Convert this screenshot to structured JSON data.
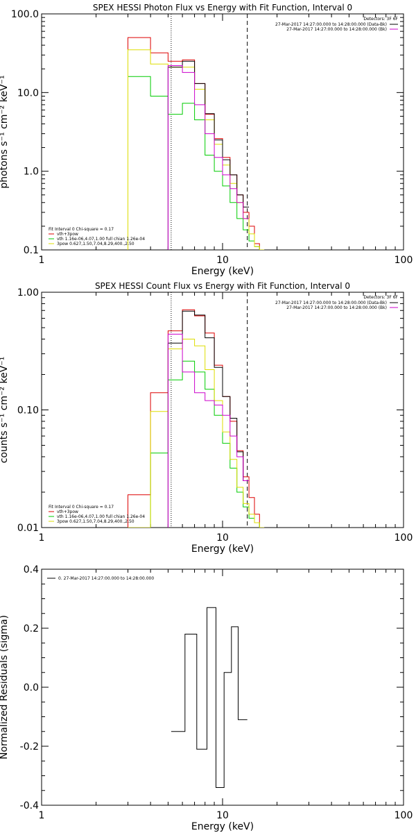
{
  "chart_data": [
    {
      "type": "line",
      "title": "SPEX HESSI Photon Flux vs Energy with Fit Function, Interval 0",
      "xlabel": "Energy (keV)",
      "ylabel": "photons s⁻¹ cm⁻² keV⁻¹",
      "x_scale": "log",
      "y_scale": "log",
      "xlim": [
        1,
        100
      ],
      "ylim": [
        0.1,
        100
      ],
      "x_ticks": [
        1,
        10,
        100
      ],
      "x_tick_labels": [
        "1",
        "10",
        "100"
      ],
      "y_ticks": [
        0.1,
        1,
        10,
        100
      ],
      "y_tick_labels": [
        "0.1",
        "1.0",
        "10.0",
        "100.0"
      ],
      "vlines": [
        {
          "x": 5.2,
          "style": "dotted",
          "color": "#000000"
        },
        {
          "x": 13.7,
          "style": "dashed",
          "color": "#000000"
        }
      ],
      "legend_top": {
        "header": "Detectors: 3F 6F",
        "entries": [
          {
            "text": "27-Mar-2017 14:27:00.000 to 14:28:00.000 (Data-Bk)",
            "color": "#000000"
          },
          {
            "text": "27-Mar-2017 14:27:00.000 to 14:28:00.000 (Bk)",
            "color": "#cc00cc"
          }
        ]
      },
      "legend_bottom": {
        "header": "Fit Interval 0   Chi-square = 0.17",
        "entries": [
          {
            "text": "vth+3pow",
            "color": "#dd0000"
          },
          {
            "text": "vth 1.16e-06,4.07,1.00  full chian 1.26e-04",
            "color": "#00cc00"
          },
          {
            "text": "3pow 0.627,1.50,7.04,8.29,400.,2.50",
            "color": "#dddd00"
          }
        ]
      },
      "edges": [
        3.0,
        4.0,
        5.0,
        6.0,
        7.0,
        8.0,
        9.0,
        10.0,
        11.0,
        12.0,
        13.0,
        14.0,
        15.0,
        16.0,
        17.0
      ],
      "series": [
        {
          "color": "#dd0000",
          "values": [
            50,
            32,
            25,
            26,
            13,
            5.3,
            2.6,
            1.5,
            0.9,
            0.5,
            0.3,
            0.2,
            0.12,
            0.1
          ]
        },
        {
          "color": "#00cc00",
          "values": [
            16,
            9,
            5.3,
            7.3,
            4.5,
            1.6,
            1.0,
            0.65,
            0.4,
            0.25,
            0.18,
            0.13,
            0.11,
            0.1
          ]
        },
        {
          "color": "#dddd00",
          "values": [
            35,
            23,
            21,
            21,
            11,
            4.5,
            2.2,
            1.2,
            0.7,
            0.4,
            0.25,
            0.16,
            0.11,
            0.1
          ]
        },
        {
          "color": "#000000",
          "values": [
            null,
            null,
            21,
            25,
            13,
            5.4,
            2.5,
            1.4,
            0.9,
            0.5,
            0.35,
            null,
            null,
            null
          ]
        },
        {
          "color": "#cc00cc",
          "values": [
            null,
            null,
            22,
            18,
            7,
            3.0,
            1.5,
            0.9,
            0.6,
            0.4,
            0.25,
            null,
            null,
            null
          ]
        }
      ]
    },
    {
      "type": "line",
      "title": "SPEX HESSI Count Flux vs Energy with Fit Function, Interval 0",
      "xlabel": "Energy (keV)",
      "ylabel": "counts s⁻¹ cm⁻² keV⁻¹",
      "x_scale": "log",
      "y_scale": "log",
      "xlim": [
        1,
        100
      ],
      "ylim": [
        0.01,
        1
      ],
      "x_ticks": [
        1,
        10,
        100
      ],
      "x_tick_labels": [
        "1",
        "10",
        "100"
      ],
      "y_ticks": [
        0.01,
        0.1,
        1
      ],
      "y_tick_labels": [
        "0.01",
        "0.10",
        "1.00"
      ],
      "vlines": [
        {
          "x": 5.2,
          "style": "dotted",
          "color": "#000000"
        },
        {
          "x": 13.7,
          "style": "dashed",
          "color": "#000000"
        }
      ],
      "legend_top": {
        "header": "Detectors: 3F 6F",
        "entries": [
          {
            "text": "27-Mar-2017 14:27:00.000 to 14:28:00.000 (Data-Bk)",
            "color": "#000000"
          },
          {
            "text": "27-Mar-2017 14:27:00.000 to 14:28:00.000 (Bk)",
            "color": "#cc00cc"
          }
        ]
      },
      "legend_bottom": {
        "header": "Fit Interval 0   Chi-square = 0.17",
        "entries": [
          {
            "text": "vth+3pow",
            "color": "#dd0000"
          },
          {
            "text": "vth 1.16e-06,4.07,1.00  full chian 1.26e-04",
            "color": "#00cc00"
          },
          {
            "text": "3pow 0.627,1.50,7.04,8.29,400.,2.50",
            "color": "#dddd00"
          }
        ]
      },
      "edges": [
        3.0,
        4.0,
        5.0,
        6.0,
        7.0,
        8.0,
        9.0,
        10.0,
        11.0,
        12.0,
        13.0,
        14.0,
        15.0,
        16.0,
        17.0
      ],
      "series": [
        {
          "color": "#dd0000",
          "values": [
            0.019,
            0.14,
            0.47,
            0.71,
            0.63,
            0.45,
            0.24,
            0.13,
            0.08,
            0.045,
            0.027,
            0.018,
            0.013,
            0.01
          ]
        },
        {
          "color": "#00cc00",
          "values": [
            0.01,
            0.043,
            0.18,
            0.26,
            0.21,
            0.15,
            0.09,
            0.052,
            0.032,
            0.02,
            0.015,
            0.012,
            0.011,
            0.01
          ]
        },
        {
          "color": "#dddd00",
          "values": [
            0.01,
            0.097,
            0.33,
            0.4,
            0.35,
            0.22,
            0.12,
            0.065,
            0.038,
            0.022,
            0.016,
            0.013,
            0.011,
            0.01
          ]
        },
        {
          "color": "#000000",
          "values": [
            null,
            null,
            0.37,
            0.69,
            0.64,
            0.41,
            0.23,
            0.13,
            0.085,
            0.044,
            0.025,
            null,
            null,
            null
          ]
        },
        {
          "color": "#cc00cc",
          "values": [
            null,
            null,
            0.44,
            0.21,
            0.14,
            0.12,
            0.11,
            0.09,
            0.06,
            0.04,
            0.025,
            null,
            null,
            null
          ]
        }
      ]
    },
    {
      "type": "line",
      "title": "",
      "xlabel": "Energy (keV)",
      "ylabel": "Normalized Residuals (sigma)",
      "x_scale": "log",
      "y_scale": "linear",
      "xlim": [
        1,
        100
      ],
      "ylim": [
        -0.4,
        0.4
      ],
      "x_ticks": [
        1,
        10,
        100
      ],
      "x_tick_labels": [
        "1",
        "10",
        "100"
      ],
      "y_ticks": [
        -0.4,
        -0.2,
        0.0,
        0.2,
        0.4
      ],
      "y_tick_labels": [
        "-0.4",
        "-0.2",
        "0.0",
        "0.2",
        "0.4"
      ],
      "vlines": [],
      "legend_top": {
        "header": "",
        "entries": [
          {
            "text": "0. 27-Mar-2017 14:27:00.000 to 14:28:00.000",
            "color": "#000000"
          }
        ]
      },
      "legend_bottom": {
        "header": "",
        "entries": []
      },
      "edges": [
        5.2,
        6.2,
        7.2,
        8.2,
        9.2,
        10.2,
        11.2,
        12.2,
        13.7
      ],
      "series": [
        {
          "color": "#000000",
          "values": [
            -0.15,
            0.18,
            -0.21,
            0.27,
            -0.34,
            0.05,
            0.205,
            -0.11
          ]
        }
      ]
    }
  ]
}
